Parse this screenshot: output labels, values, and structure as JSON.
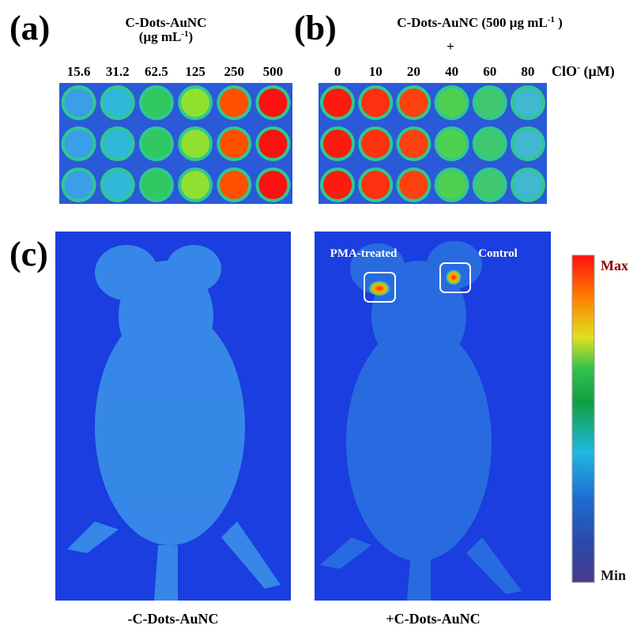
{
  "panel_a": {
    "label": "(a)",
    "title": "C-Dots-AuNC",
    "unit": {
      "open": "(μg mL",
      "sup": "-1",
      "close": ")"
    },
    "concentrations": [
      "15.6",
      "31.2",
      "62.5",
      "125",
      "250",
      "500"
    ]
  },
  "panel_b": {
    "label": "(b)",
    "title": {
      "text": "C-Dots-AuNC (500 μg mL",
      "sup": "-1",
      "close": " )"
    },
    "plus": "+",
    "concentrations": [
      "0",
      "10",
      "20",
      "40",
      "60",
      "80"
    ],
    "analyte": {
      "text": "ClO",
      "sup": "-",
      "close": " (μM)"
    }
  },
  "panel_c": {
    "label": "(c)",
    "left_caption": "-C-Dots-AuNC",
    "right_caption": "+C-Dots-AuNC",
    "spot_labels": [
      "PMA-treated",
      "Control"
    ],
    "colorbar": {
      "max": "Max",
      "min": "Min"
    }
  }
}
